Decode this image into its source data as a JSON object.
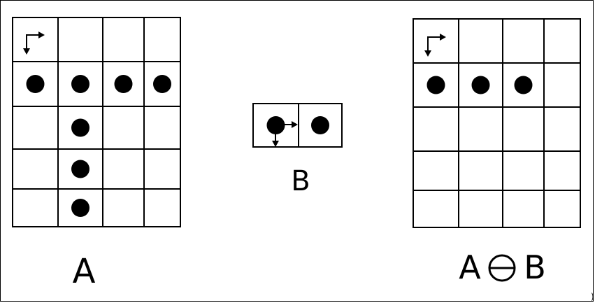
{
  "panels": {
    "a": {
      "label": "A",
      "rows": 5,
      "cols": 4,
      "dots": [
        [
          1,
          0
        ],
        [
          1,
          1
        ],
        [
          1,
          2
        ],
        [
          1,
          3
        ],
        [
          2,
          1
        ],
        [
          3,
          1
        ],
        [
          4,
          1
        ]
      ]
    },
    "b": {
      "label": "B",
      "rows": 1,
      "cols": 2,
      "dots": [
        [
          0,
          0
        ],
        [
          0,
          1
        ]
      ]
    },
    "result": {
      "label_left": "A",
      "label_right": "B",
      "operator_icon": "erosion-operator-icon",
      "rows": 5,
      "cols": 4,
      "dots": [
        [
          1,
          0
        ],
        [
          1,
          1
        ],
        [
          1,
          2
        ]
      ]
    }
  },
  "colors": {
    "ink": "#000000",
    "paper": "#ffffff"
  }
}
